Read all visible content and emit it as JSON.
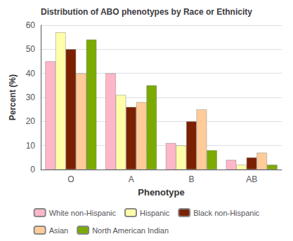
{
  "chart_data": {
    "type": "bar",
    "title": "Distribution of ABO phenotypes by Race or Ethnicity",
    "xlabel": "Phenotype",
    "ylabel": "Percent (%)",
    "categories": [
      "O",
      "A",
      "B",
      "AB"
    ],
    "series": [
      {
        "name": "White non-Hispanic",
        "color": "#FFB6C8",
        "values": [
          45,
          40,
          11,
          4
        ]
      },
      {
        "name": "Hispanic",
        "color": "#FFFFAA",
        "values": [
          57,
          31,
          10,
          2
        ]
      },
      {
        "name": "Black non-Hispanic",
        "color": "#7B2000",
        "values": [
          50,
          26,
          20,
          5
        ]
      },
      {
        "name": "Asian",
        "color": "#FFCC99",
        "values": [
          40,
          28,
          25,
          7
        ]
      },
      {
        "name": "North American Indian",
        "color": "#7BAA00",
        "values": [
          54,
          35,
          8,
          2
        ]
      }
    ],
    "ylim": [
      0,
      60
    ],
    "yticks": [
      0,
      10,
      20,
      30,
      40,
      50,
      60
    ],
    "grid": true,
    "legend": "bottom"
  }
}
